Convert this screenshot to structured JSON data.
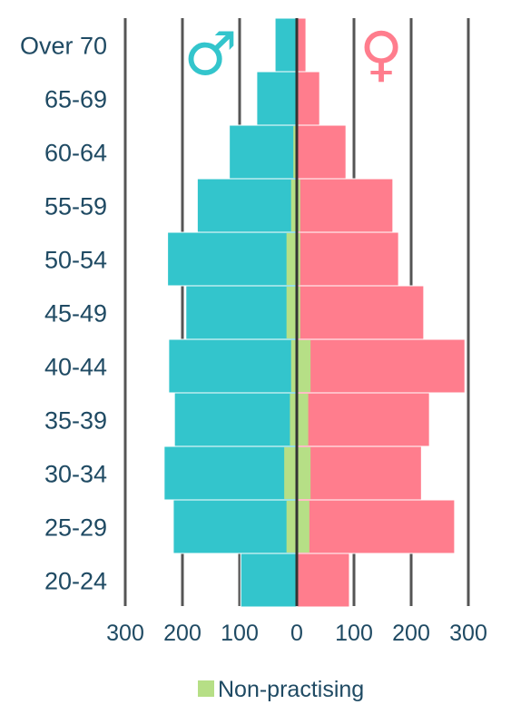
{
  "chart_data": {
    "type": "bar",
    "orientation": "horizontal",
    "layout": "population-pyramid",
    "categories": [
      "Over 70",
      "65-69",
      "60-64",
      "55-59",
      "50-54",
      "45-49",
      "40-44",
      "35-39",
      "30-34",
      "25-29",
      "20-24"
    ],
    "series": [
      {
        "symbol": "male",
        "side": "left",
        "color": "#33c5cc",
        "values": [
          38,
          70,
          118,
          174,
          226,
          194,
          224,
          214,
          232,
          216,
          98
        ]
      },
      {
        "symbol": "female",
        "side": "right",
        "color": "#ff7d8d",
        "values": [
          16,
          40,
          86,
          168,
          178,
          222,
          294,
          232,
          218,
          276,
          92
        ]
      },
      {
        "name": "Non-practising",
        "side": "both",
        "color": "#b6df86",
        "values_left": [
          0,
          0,
          6,
          10,
          18,
          18,
          10,
          12,
          22,
          18,
          0
        ],
        "values_right": [
          0,
          0,
          0,
          6,
          6,
          6,
          24,
          20,
          24,
          22,
          0
        ]
      }
    ],
    "xticks": [
      "300",
      "200",
      "100",
      "0",
      "100",
      "200",
      "300"
    ],
    "xtick_values": [
      -300,
      -200,
      -100,
      0,
      100,
      200,
      300
    ],
    "xlim": [
      -300,
      300
    ],
    "grid": true,
    "legend": {
      "position": "bottom",
      "entries": [
        "Non-practising"
      ]
    },
    "symbols": {
      "male": "♂",
      "female": "♀"
    }
  }
}
